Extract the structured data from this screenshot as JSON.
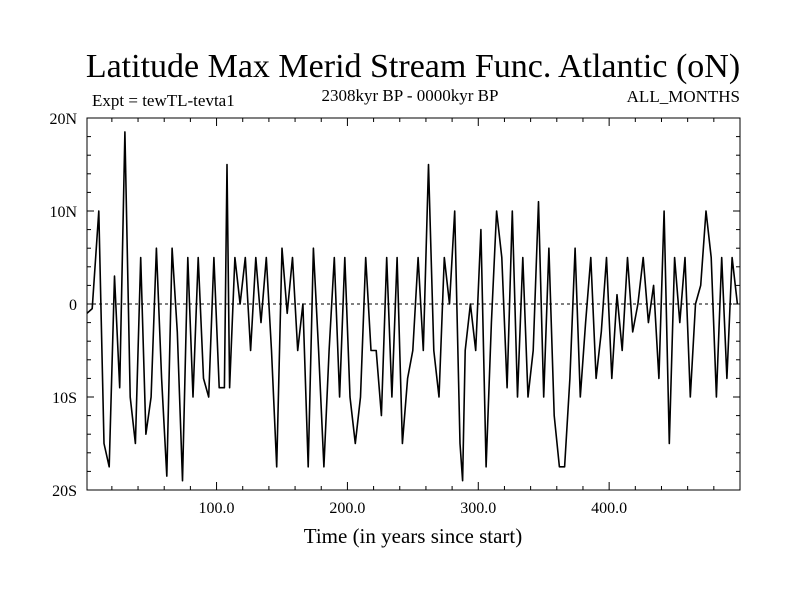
{
  "chart_data": {
    "type": "line",
    "title": "Latitude Max Merid Stream Func. Atlantic (oN)",
    "subtitle_left": "Expt = tewTL-tevta1",
    "subtitle_center": "2308kyr BP - 0000kyr BP",
    "subtitle_right": "ALL_MONTHS",
    "xlabel": "Time (in years since start)",
    "ylabel": "",
    "xlim": [
      1,
      500
    ],
    "ylim": [
      -20,
      20
    ],
    "xticks": [
      100,
      200,
      300,
      400
    ],
    "xtick_labels": [
      "100.0",
      "200.0",
      "300.0",
      "400.0"
    ],
    "yticks": [
      20,
      10,
      0,
      -10,
      -20
    ],
    "ytick_labels": [
      "20N",
      "10N",
      "0",
      "10S",
      "20S"
    ],
    "zero_line": true,
    "grid": false,
    "series": [
      {
        "x": [
          1,
          5,
          10,
          14,
          18,
          22,
          26,
          30,
          34,
          38,
          42,
          46,
          50,
          54,
          58,
          62,
          66,
          70,
          74,
          78,
          82,
          86,
          90,
          94,
          98,
          102,
          106,
          108,
          110,
          114,
          118,
          122,
          126,
          130,
          134,
          138,
          142,
          146,
          150,
          154,
          158,
          162,
          166,
          170,
          174,
          178,
          182,
          186,
          190,
          194,
          198,
          202,
          206,
          210,
          214,
          218,
          222,
          226,
          230,
          234,
          238,
          242,
          246,
          250,
          254,
          258,
          262,
          266,
          270,
          274,
          278,
          282,
          286,
          288,
          290,
          294,
          298,
          302,
          306,
          310,
          314,
          318,
          322,
          326,
          330,
          334,
          338,
          342,
          346,
          350,
          354,
          358,
          362,
          366,
          370,
          374,
          378,
          382,
          386,
          390,
          394,
          398,
          402,
          406,
          410,
          414,
          418,
          422,
          426,
          430,
          434,
          438,
          442,
          446,
          450,
          454,
          458,
          462,
          466,
          470,
          474,
          478,
          482,
          486,
          490,
          494,
          498
        ],
        "y": [
          -1,
          -0.5,
          10,
          -15,
          -17.5,
          3,
          -9,
          18.5,
          -10,
          -15,
          5,
          -14,
          -10,
          6,
          -8,
          -18.5,
          6,
          -3,
          -19,
          5,
          -10,
          5,
          -8,
          -10,
          5,
          -9,
          -9,
          15,
          -9,
          5,
          0,
          5,
          -5,
          5,
          -2,
          5,
          -5,
          -17.5,
          6,
          -1,
          5,
          -5,
          0,
          -17.5,
          6,
          -5,
          -17.5,
          -5,
          5,
          -10,
          5,
          -10,
          -15,
          -10,
          5,
          -5,
          -5,
          -12,
          5,
          -10,
          5,
          -15,
          -8,
          -5,
          5,
          -5,
          15,
          -5,
          -10,
          5,
          0,
          10,
          -15,
          -19,
          -5,
          0,
          -5,
          8,
          -17.5,
          -2,
          10,
          5,
          -9,
          10,
          -10,
          5,
          -10,
          -5,
          11,
          -10,
          6,
          -12,
          -17.5,
          -17.5,
          -8,
          6,
          -10,
          -2,
          5,
          -8,
          -3,
          5,
          -8,
          1,
          -5,
          5,
          -3,
          0,
          5,
          -2,
          2,
          -8,
          10,
          -15,
          5,
          -2,
          5,
          -10,
          0,
          2,
          10,
          5,
          -10,
          5,
          -8,
          5,
          0
        ]
      }
    ]
  }
}
